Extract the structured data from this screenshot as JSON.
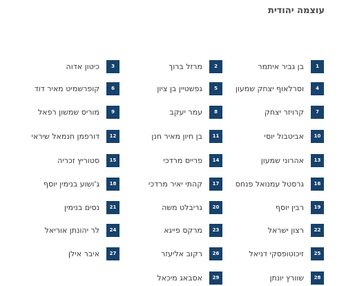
{
  "title": "עוצמה יהודית",
  "candidates": [
    {
      "number": "1",
      "name": "בן גביר איתמר"
    },
    {
      "number": "2",
      "name": "מרזל ברוך"
    },
    {
      "number": "3",
      "name": "כיטון אדוה"
    },
    {
      "number": "4",
      "name": "וסרלאוף יצחק שמעון"
    },
    {
      "number": "5",
      "name": "גפשטיין בן ציון"
    },
    {
      "number": "6",
      "name": "קופרשמיט מאיר דוד"
    },
    {
      "number": "7",
      "name": "קרויזר יצחק"
    },
    {
      "number": "8",
      "name": "עמר יעקב"
    },
    {
      "number": "9",
      "name": "מוריס שמשון רפאל"
    },
    {
      "number": "10",
      "name": "אביטבול יוסי"
    },
    {
      "number": "11",
      "name": "בן חיון מאיר חנן"
    },
    {
      "number": "12",
      "name": "דורפמן חנמאל שיראי"
    },
    {
      "number": "13",
      "name": "אהרוני שמעון"
    },
    {
      "number": "14",
      "name": "פרייס מרדכי"
    },
    {
      "number": "15",
      "name": "סטוריץ זכריה"
    },
    {
      "number": "16",
      "name": "גרסטל עמנואל פנחס"
    },
    {
      "number": "17",
      "name": "קהתי יאיר מרדכי"
    },
    {
      "number": "18",
      "name": "ג'ושוע בנימין יוסף"
    },
    {
      "number": "19",
      "name": "רבין יוסף"
    },
    {
      "number": "20",
      "name": "גריבלט משה"
    },
    {
      "number": "21",
      "name": "נסים בנימין"
    },
    {
      "number": "22",
      "name": "רצון ישראל"
    },
    {
      "number": "23",
      "name": "מרקס פייגא"
    },
    {
      "number": "24",
      "name": "לר יהונתן אוריאל"
    },
    {
      "number": "25",
      "name": "זיכוטופסקי דניאל"
    },
    {
      "number": "26",
      "name": "רקוב אליעזר"
    },
    {
      "number": "27",
      "name": "איבר אילן"
    },
    {
      "number": "28",
      "name": "שוורץ יונתן"
    },
    {
      "number": "29",
      "name": "אסבאג מיכאל"
    }
  ]
}
